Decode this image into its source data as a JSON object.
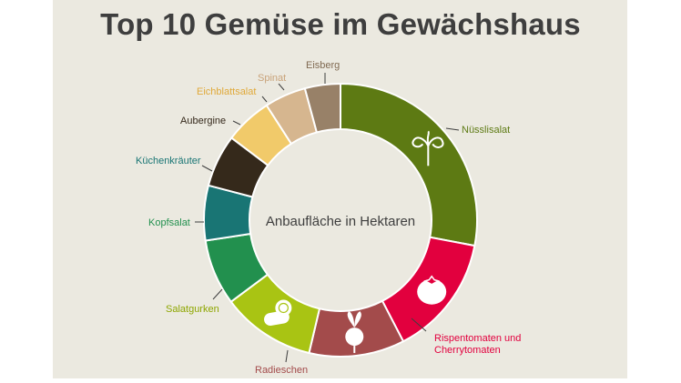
{
  "title": "Top 10 Gemüse im Gewächshaus",
  "chart_data": {
    "type": "pie",
    "title": "Top 10 Gemüse im Gewächshaus",
    "center_label": "Anbaufläche in Hektaren",
    "legend": "none",
    "slices": [
      {
        "name": "Nüsslisalat",
        "value": 28.0,
        "color": "#5d7a13",
        "icon": "lettuce-icon"
      },
      {
        "name": "Rispentomaten und Cherrytomaten",
        "value": 14.4,
        "color": "#e2003e",
        "icon": "tomato-icon"
      },
      {
        "name": "Radieschen",
        "value": 11.3,
        "color": "#a34b4b",
        "icon": "radish-icon"
      },
      {
        "name": "Salatgurken",
        "value": 11.1,
        "color": "#a9c413",
        "icon": "cucumber-icon"
      },
      {
        "name": "Kopfsalat",
        "value": 7.8,
        "color": "#22904e"
      },
      {
        "name": "Küchenkräuter",
        "value": 6.5,
        "color": "#197574"
      },
      {
        "name": "Aubergine",
        "value": 6.2,
        "color": "#35291b"
      },
      {
        "name": "Eichblattsalat",
        "value": 5.6,
        "color": "#f1ca6a"
      },
      {
        "name": "Spinat",
        "value": 4.9,
        "color": "#d6b68f"
      },
      {
        "name": "Eisberg",
        "value": 4.2,
        "color": "#988168"
      }
    ]
  }
}
